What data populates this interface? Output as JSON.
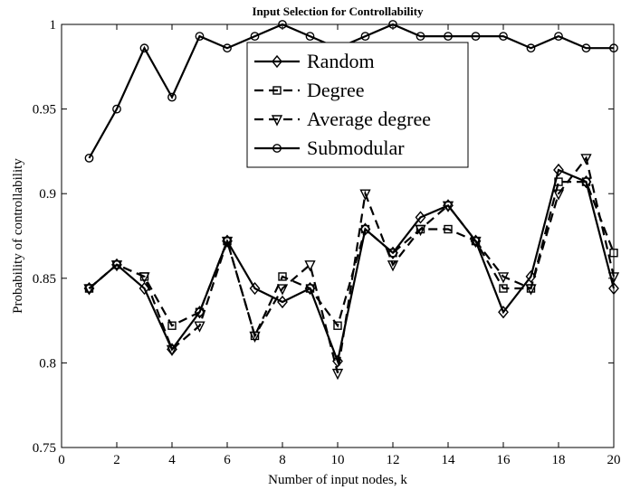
{
  "chart_data": {
    "type": "line",
    "title": "Input Selection for Controllability",
    "xlabel": "Number of input nodes, k",
    "ylabel": "Probability of controllability",
    "xlim": [
      0,
      20
    ],
    "ylim": [
      0.75,
      1
    ],
    "xticks": [
      0,
      2,
      4,
      6,
      8,
      10,
      12,
      14,
      16,
      18,
      20
    ],
    "yticks": [
      0.75,
      0.8,
      0.85,
      0.9,
      0.95,
      1
    ],
    "ytick_labels": [
      "0.75",
      "0.8",
      "0.85",
      "0.9",
      "0.95",
      "1"
    ],
    "grid": false,
    "legend_position": "top-center",
    "x": [
      1,
      2,
      3,
      4,
      5,
      6,
      7,
      8,
      9,
      10,
      11,
      12,
      13,
      14,
      15,
      16,
      17,
      18,
      19,
      20
    ],
    "series": [
      {
        "name": "Random",
        "marker": "diamond",
        "dash": "solid",
        "values": [
          0.844,
          0.858,
          0.844,
          0.808,
          0.83,
          0.872,
          0.844,
          0.836,
          0.844,
          0.801,
          0.879,
          0.865,
          0.886,
          0.893,
          0.872,
          0.83,
          0.851,
          0.914,
          0.907,
          0.844
        ]
      },
      {
        "name": "Degree",
        "marker": "square",
        "dash": "dashed",
        "values": [
          0.844,
          0.858,
          0.851,
          0.822,
          0.83,
          0.872,
          0.816,
          0.851,
          0.844,
          0.822,
          0.879,
          0.865,
          0.879,
          0.879,
          0.872,
          0.844,
          0.844,
          0.907,
          0.907,
          0.865
        ]
      },
      {
        "name": "Average degree",
        "marker": "triangle-down",
        "dash": "dashed",
        "values": [
          0.844,
          0.858,
          0.851,
          0.808,
          0.822,
          0.872,
          0.816,
          0.844,
          0.858,
          0.794,
          0.9,
          0.858,
          0.879,
          0.893,
          0.872,
          0.851,
          0.844,
          0.9,
          0.921,
          0.851
        ]
      },
      {
        "name": "Submodular",
        "marker": "circle",
        "dash": "solid",
        "values": [
          0.921,
          0.95,
          0.986,
          0.957,
          0.993,
          0.986,
          0.993,
          1.0,
          0.993,
          0.986,
          0.993,
          1.0,
          0.993,
          0.993,
          0.993,
          0.993,
          0.986,
          0.993,
          0.986,
          0.986
        ]
      }
    ]
  }
}
